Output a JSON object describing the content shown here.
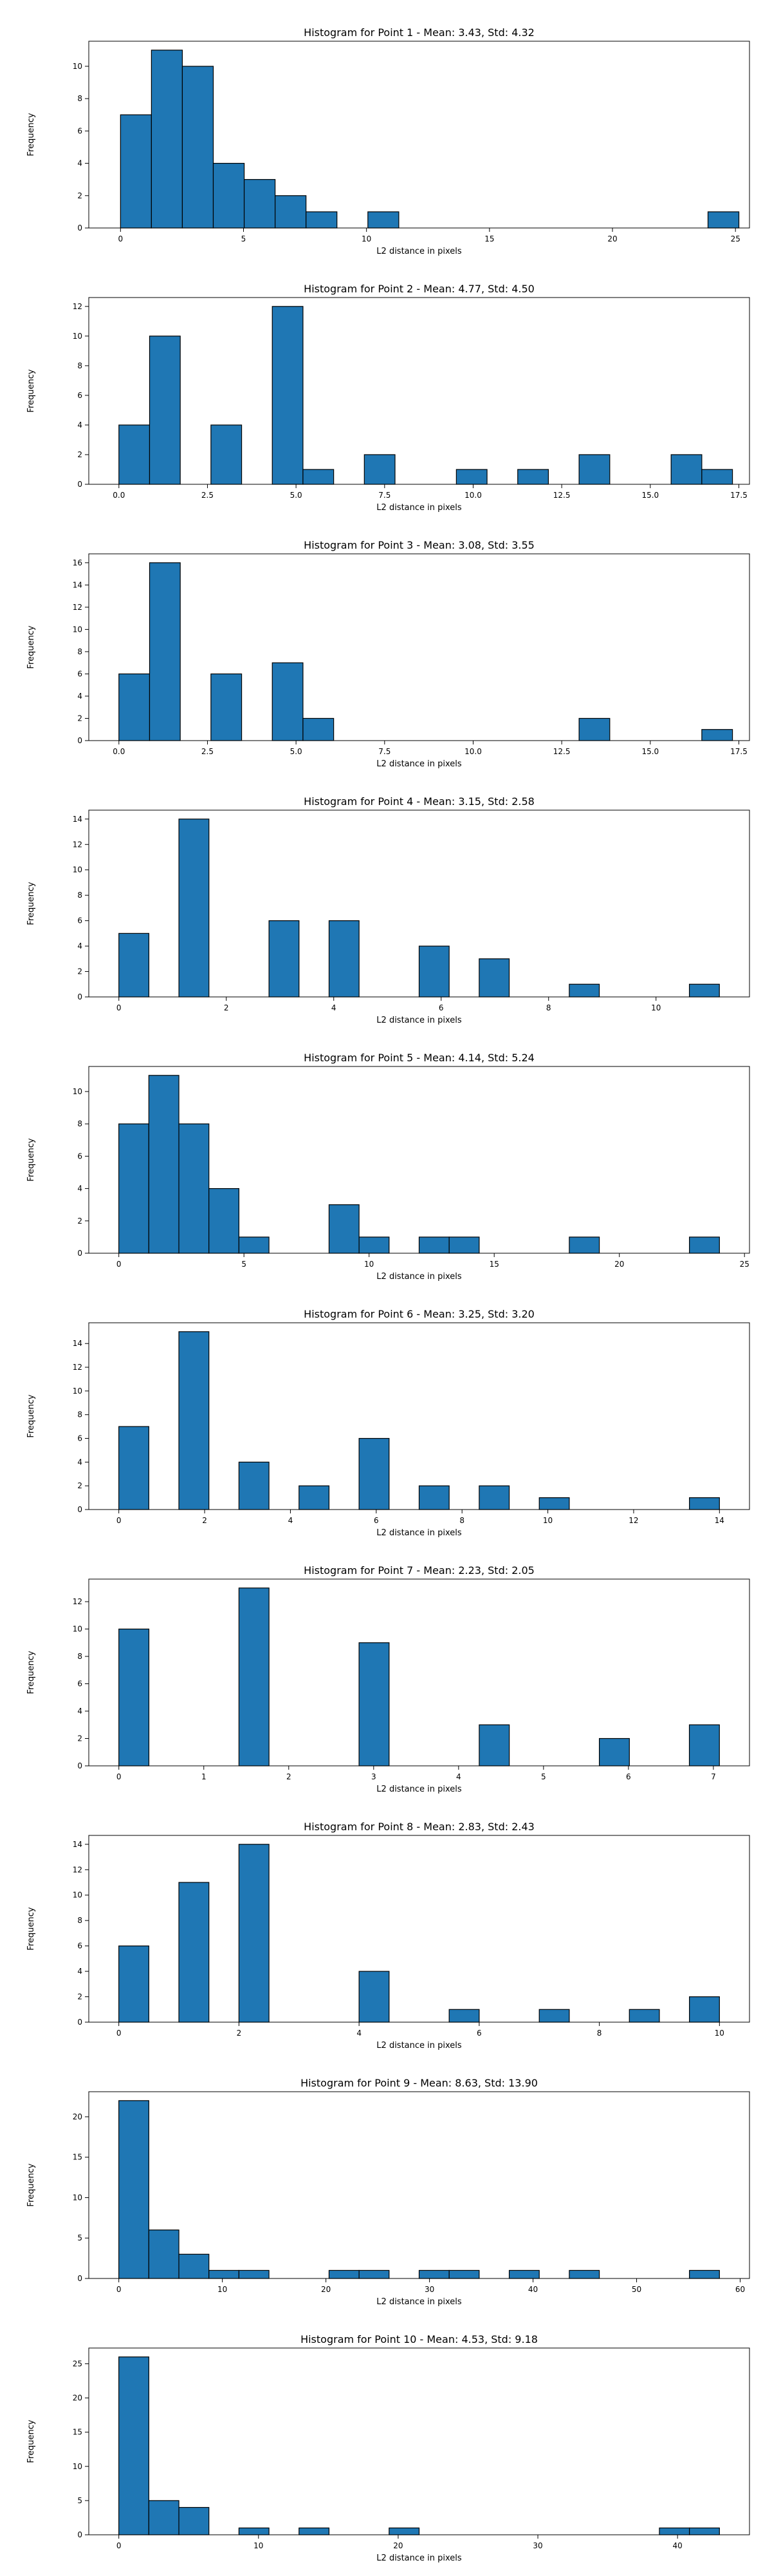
{
  "chart_data": [
    {
      "type": "bar",
      "title": "Histogram for Point 1 - Mean: 3.43, Std: 4.32",
      "xlabel": "L2 distance in pixels",
      "ylabel": "Frequency",
      "xlim": [
        -1.29,
        25.57
      ],
      "ylim": [
        0,
        11.55
      ],
      "xticks": [
        0,
        5,
        10,
        15,
        20,
        25
      ],
      "yticks": [
        0,
        2,
        4,
        6,
        8,
        10
      ],
      "bin_width": 1.257,
      "bins": [
        {
          "x0": 0.0,
          "count": 7
        },
        {
          "x0": 1.257,
          "count": 11
        },
        {
          "x0": 2.514,
          "count": 10
        },
        {
          "x0": 3.771,
          "count": 4
        },
        {
          "x0": 5.028,
          "count": 3
        },
        {
          "x0": 6.285,
          "count": 2
        },
        {
          "x0": 7.542,
          "count": 1
        },
        {
          "x0": 10.056,
          "count": 1
        },
        {
          "x0": 23.883,
          "count": 1
        }
      ]
    },
    {
      "type": "bar",
      "title": "Histogram for Point 2 - Mean: 4.77, Std: 4.50",
      "xlabel": "L2 distance in pixels",
      "ylabel": "Frequency",
      "xlim": [
        -0.85,
        17.8
      ],
      "ylim": [
        0,
        12.6
      ],
      "xticks": [
        0.0,
        2.5,
        5.0,
        7.5,
        10.0,
        12.5,
        15.0,
        17.5
      ],
      "xtick_labels": [
        "0.0",
        "2.5",
        "5.0",
        "7.5",
        "10.0",
        "12.5",
        "15.0",
        "17.5"
      ],
      "yticks": [
        0,
        2,
        4,
        6,
        8,
        10,
        12
      ],
      "bin_width": 0.866,
      "bins": [
        {
          "x0": 0.0,
          "count": 4
        },
        {
          "x0": 0.866,
          "count": 10
        },
        {
          "x0": 2.598,
          "count": 4
        },
        {
          "x0": 4.33,
          "count": 12
        },
        {
          "x0": 5.196,
          "count": 1
        },
        {
          "x0": 6.928,
          "count": 2
        },
        {
          "x0": 9.526,
          "count": 1
        },
        {
          "x0": 11.258,
          "count": 1
        },
        {
          "x0": 12.99,
          "count": 2
        },
        {
          "x0": 15.588,
          "count": 2
        },
        {
          "x0": 16.454,
          "count": 1
        }
      ]
    },
    {
      "type": "bar",
      "title": "Histogram for Point 3 - Mean: 3.08, Std: 3.55",
      "xlabel": "L2 distance in pixels",
      "ylabel": "Frequency",
      "xlim": [
        -0.85,
        17.8
      ],
      "ylim": [
        0,
        16.8
      ],
      "xticks": [
        0.0,
        2.5,
        5.0,
        7.5,
        10.0,
        12.5,
        15.0,
        17.5
      ],
      "xtick_labels": [
        "0.0",
        "2.5",
        "5.0",
        "7.5",
        "10.0",
        "12.5",
        "15.0",
        "17.5"
      ],
      "yticks": [
        0,
        2,
        4,
        6,
        8,
        10,
        12,
        14,
        16
      ],
      "bin_width": 0.866,
      "bins": [
        {
          "x0": 0.0,
          "count": 6
        },
        {
          "x0": 0.866,
          "count": 16
        },
        {
          "x0": 2.598,
          "count": 6
        },
        {
          "x0": 4.33,
          "count": 7
        },
        {
          "x0": 5.196,
          "count": 2
        },
        {
          "x0": 12.99,
          "count": 2
        },
        {
          "x0": 16.454,
          "count": 1
        }
      ]
    },
    {
      "type": "bar",
      "title": "Histogram for Point 4 - Mean: 3.15, Std: 2.58",
      "xlabel": "L2 distance in pixels",
      "ylabel": "Frequency",
      "xlim": [
        -0.56,
        11.74
      ],
      "ylim": [
        0,
        14.7
      ],
      "xticks": [
        0,
        2,
        4,
        6,
        8,
        10
      ],
      "yticks": [
        0,
        2,
        4,
        6,
        8,
        10,
        12,
        14
      ],
      "bin_width": 0.559,
      "bins": [
        {
          "x0": 0.0,
          "count": 5
        },
        {
          "x0": 1.118,
          "count": 14
        },
        {
          "x0": 2.795,
          "count": 6
        },
        {
          "x0": 3.913,
          "count": 6
        },
        {
          "x0": 5.59,
          "count": 4
        },
        {
          "x0": 6.708,
          "count": 3
        },
        {
          "x0": 8.385,
          "count": 1
        },
        {
          "x0": 10.621,
          "count": 1
        }
      ]
    },
    {
      "type": "bar",
      "title": "Histogram for Point 5 - Mean: 4.14, Std: 5.24",
      "xlabel": "L2 distance in pixels",
      "ylabel": "Frequency",
      "xlim": [
        -1.2,
        25.2
      ],
      "ylim": [
        0,
        11.55
      ],
      "xticks": [
        0,
        5,
        10,
        15,
        20,
        25
      ],
      "yticks": [
        0,
        2,
        4,
        6,
        8,
        10
      ],
      "bin_width": 1.2,
      "bins": [
        {
          "x0": 0.0,
          "count": 8
        },
        {
          "x0": 1.2,
          "count": 11
        },
        {
          "x0": 2.4,
          "count": 8
        },
        {
          "x0": 3.6,
          "count": 4
        },
        {
          "x0": 4.8,
          "count": 1
        },
        {
          "x0": 8.4,
          "count": 3
        },
        {
          "x0": 9.6,
          "count": 1
        },
        {
          "x0": 12.0,
          "count": 1
        },
        {
          "x0": 13.2,
          "count": 1
        },
        {
          "x0": 18.0,
          "count": 1
        },
        {
          "x0": 22.8,
          "count": 1
        }
      ]
    },
    {
      "type": "bar",
      "title": "Histogram for Point 6 - Mean: 3.25, Std: 3.20",
      "xlabel": "L2 distance in pixels",
      "ylabel": "Frequency",
      "xlim": [
        -0.7,
        14.7
      ],
      "ylim": [
        0,
        15.75
      ],
      "xticks": [
        0,
        2,
        4,
        6,
        8,
        10,
        12,
        14
      ],
      "yticks": [
        0,
        2,
        4,
        6,
        8,
        10,
        12,
        14
      ],
      "bin_width": 0.7,
      "bins": [
        {
          "x0": 0.0,
          "count": 7
        },
        {
          "x0": 1.4,
          "count": 15
        },
        {
          "x0": 2.8,
          "count": 4
        },
        {
          "x0": 4.2,
          "count": 2
        },
        {
          "x0": 5.6,
          "count": 6
        },
        {
          "x0": 7.0,
          "count": 2
        },
        {
          "x0": 8.4,
          "count": 2
        },
        {
          "x0": 9.8,
          "count": 1
        },
        {
          "x0": 13.3,
          "count": 1
        }
      ]
    },
    {
      "type": "bar",
      "title": "Histogram for Point 7 - Mean: 2.23, Std: 2.05",
      "xlabel": "L2 distance in pixels",
      "ylabel": "Frequency",
      "xlim": [
        -0.354,
        7.425
      ],
      "ylim": [
        0,
        13.65
      ],
      "xticks": [
        0,
        1,
        2,
        3,
        4,
        5,
        6,
        7
      ],
      "yticks": [
        0,
        2,
        4,
        6,
        8,
        10,
        12
      ],
      "bin_width": 0.354,
      "bins": [
        {
          "x0": 0.0,
          "count": 10
        },
        {
          "x0": 1.414,
          "count": 13
        },
        {
          "x0": 2.828,
          "count": 9
        },
        {
          "x0": 4.243,
          "count": 3
        },
        {
          "x0": 5.657,
          "count": 2
        },
        {
          "x0": 6.717,
          "count": 3
        }
      ]
    },
    {
      "type": "bar",
      "title": "Histogram for Point 8 - Mean: 2.83, Std: 2.43",
      "xlabel": "L2 distance in pixels",
      "ylabel": "Frequency",
      "xlim": [
        -0.5,
        10.5
      ],
      "ylim": [
        0,
        14.7
      ],
      "xticks": [
        0,
        2,
        4,
        6,
        8,
        10
      ],
      "yticks": [
        0,
        2,
        4,
        6,
        8,
        10,
        12,
        14
      ],
      "bin_width": 0.5,
      "bins": [
        {
          "x0": 0.0,
          "count": 6
        },
        {
          "x0": 1.0,
          "count": 11
        },
        {
          "x0": 2.0,
          "count": 14
        },
        {
          "x0": 4.0,
          "count": 4
        },
        {
          "x0": 5.5,
          "count": 1
        },
        {
          "x0": 7.0,
          "count": 1
        },
        {
          "x0": 8.5,
          "count": 1
        },
        {
          "x0": 9.5,
          "count": 2
        }
      ]
    },
    {
      "type": "bar",
      "title": "Histogram for Point 9 - Mean: 8.63, Std: 13.90",
      "xlabel": "L2 distance in pixels",
      "ylabel": "Frequency",
      "xlim": [
        -2.9,
        60.9
      ],
      "ylim": [
        0,
        23.1
      ],
      "xticks": [
        0,
        10,
        20,
        30,
        40,
        50,
        60
      ],
      "yticks": [
        0,
        5,
        10,
        15,
        20
      ],
      "bin_width": 2.9,
      "bins": [
        {
          "x0": 0.0,
          "count": 22
        },
        {
          "x0": 2.9,
          "count": 6
        },
        {
          "x0": 5.8,
          "count": 3
        },
        {
          "x0": 8.7,
          "count": 1
        },
        {
          "x0": 11.6,
          "count": 1
        },
        {
          "x0": 20.3,
          "count": 1
        },
        {
          "x0": 23.2,
          "count": 1
        },
        {
          "x0": 29.0,
          "count": 1
        },
        {
          "x0": 31.9,
          "count": 1
        },
        {
          "x0": 37.7,
          "count": 1
        },
        {
          "x0": 43.5,
          "count": 1
        },
        {
          "x0": 55.1,
          "count": 1
        }
      ]
    },
    {
      "type": "bar",
      "title": "Histogram for Point 10 - Mean: 4.53, Std: 9.18",
      "xlabel": "L2 distance in pixels",
      "ylabel": "Frequency",
      "xlim": [
        -2.15,
        45.15
      ],
      "ylim": [
        0,
        27.3
      ],
      "xticks": [
        0,
        10,
        20,
        30,
        40
      ],
      "yticks": [
        0,
        5,
        10,
        15,
        20,
        25
      ],
      "bin_width": 2.15,
      "bins": [
        {
          "x0": 0.0,
          "count": 26
        },
        {
          "x0": 2.15,
          "count": 5
        },
        {
          "x0": 4.3,
          "count": 4
        },
        {
          "x0": 8.6,
          "count": 1
        },
        {
          "x0": 12.9,
          "count": 1
        },
        {
          "x0": 19.35,
          "count": 1
        },
        {
          "x0": 38.7,
          "count": 1
        },
        {
          "x0": 40.85,
          "count": 1
        }
      ]
    }
  ]
}
